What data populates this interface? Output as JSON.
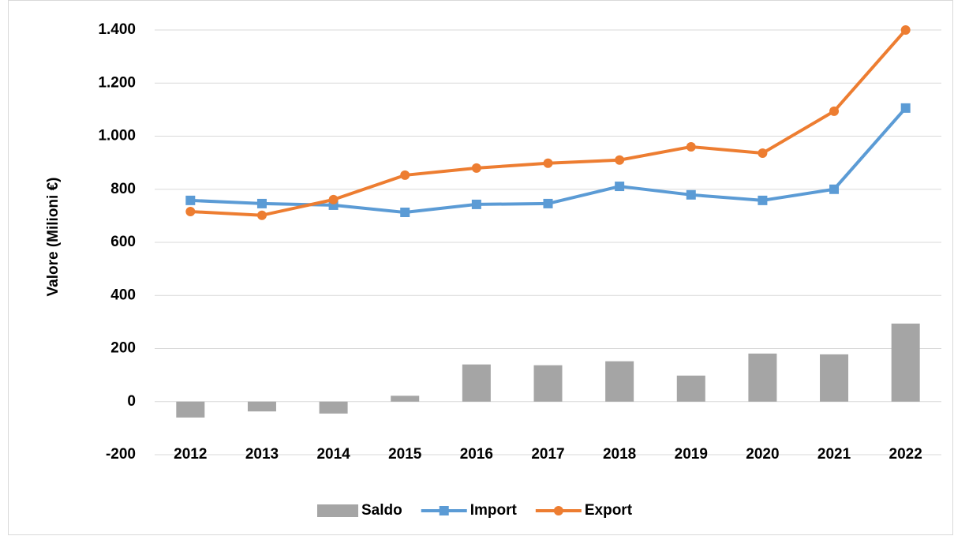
{
  "chart_data": {
    "type": "combo",
    "y_axis_label": "Valore (Milioni €)",
    "categories": [
      "2012",
      "2013",
      "2014",
      "2015",
      "2016",
      "2017",
      "2018",
      "2019",
      "2020",
      "2021",
      "2022"
    ],
    "series": [
      {
        "name": "Saldo",
        "type": "bar",
        "color": "#a5a5a5",
        "values": [
          -60,
          -37,
          -45,
          22,
          140,
          137,
          152,
          98,
          181,
          178,
          294
        ]
      },
      {
        "name": "Import",
        "type": "line",
        "marker": "square",
        "color": "#5b9bd5",
        "values": [
          758,
          746,
          740,
          713,
          743,
          746,
          811,
          779,
          758,
          800,
          1106
        ]
      },
      {
        "name": "Export",
        "type": "line",
        "marker": "circle",
        "color": "#ed7d31",
        "values": [
          716,
          702,
          761,
          853,
          880,
          898,
          910,
          960,
          936,
          1094,
          1400
        ]
      }
    ],
    "ylim": [
      -200,
      1400
    ],
    "yticks": [
      -200,
      0,
      200,
      400,
      600,
      800,
      {
        "value": 1000,
        "label": "1.000"
      },
      {
        "value": 1200,
        "label": "1.200"
      },
      {
        "value": 1400,
        "label": "1.400"
      }
    ],
    "grid": true,
    "legend": "bottom"
  }
}
